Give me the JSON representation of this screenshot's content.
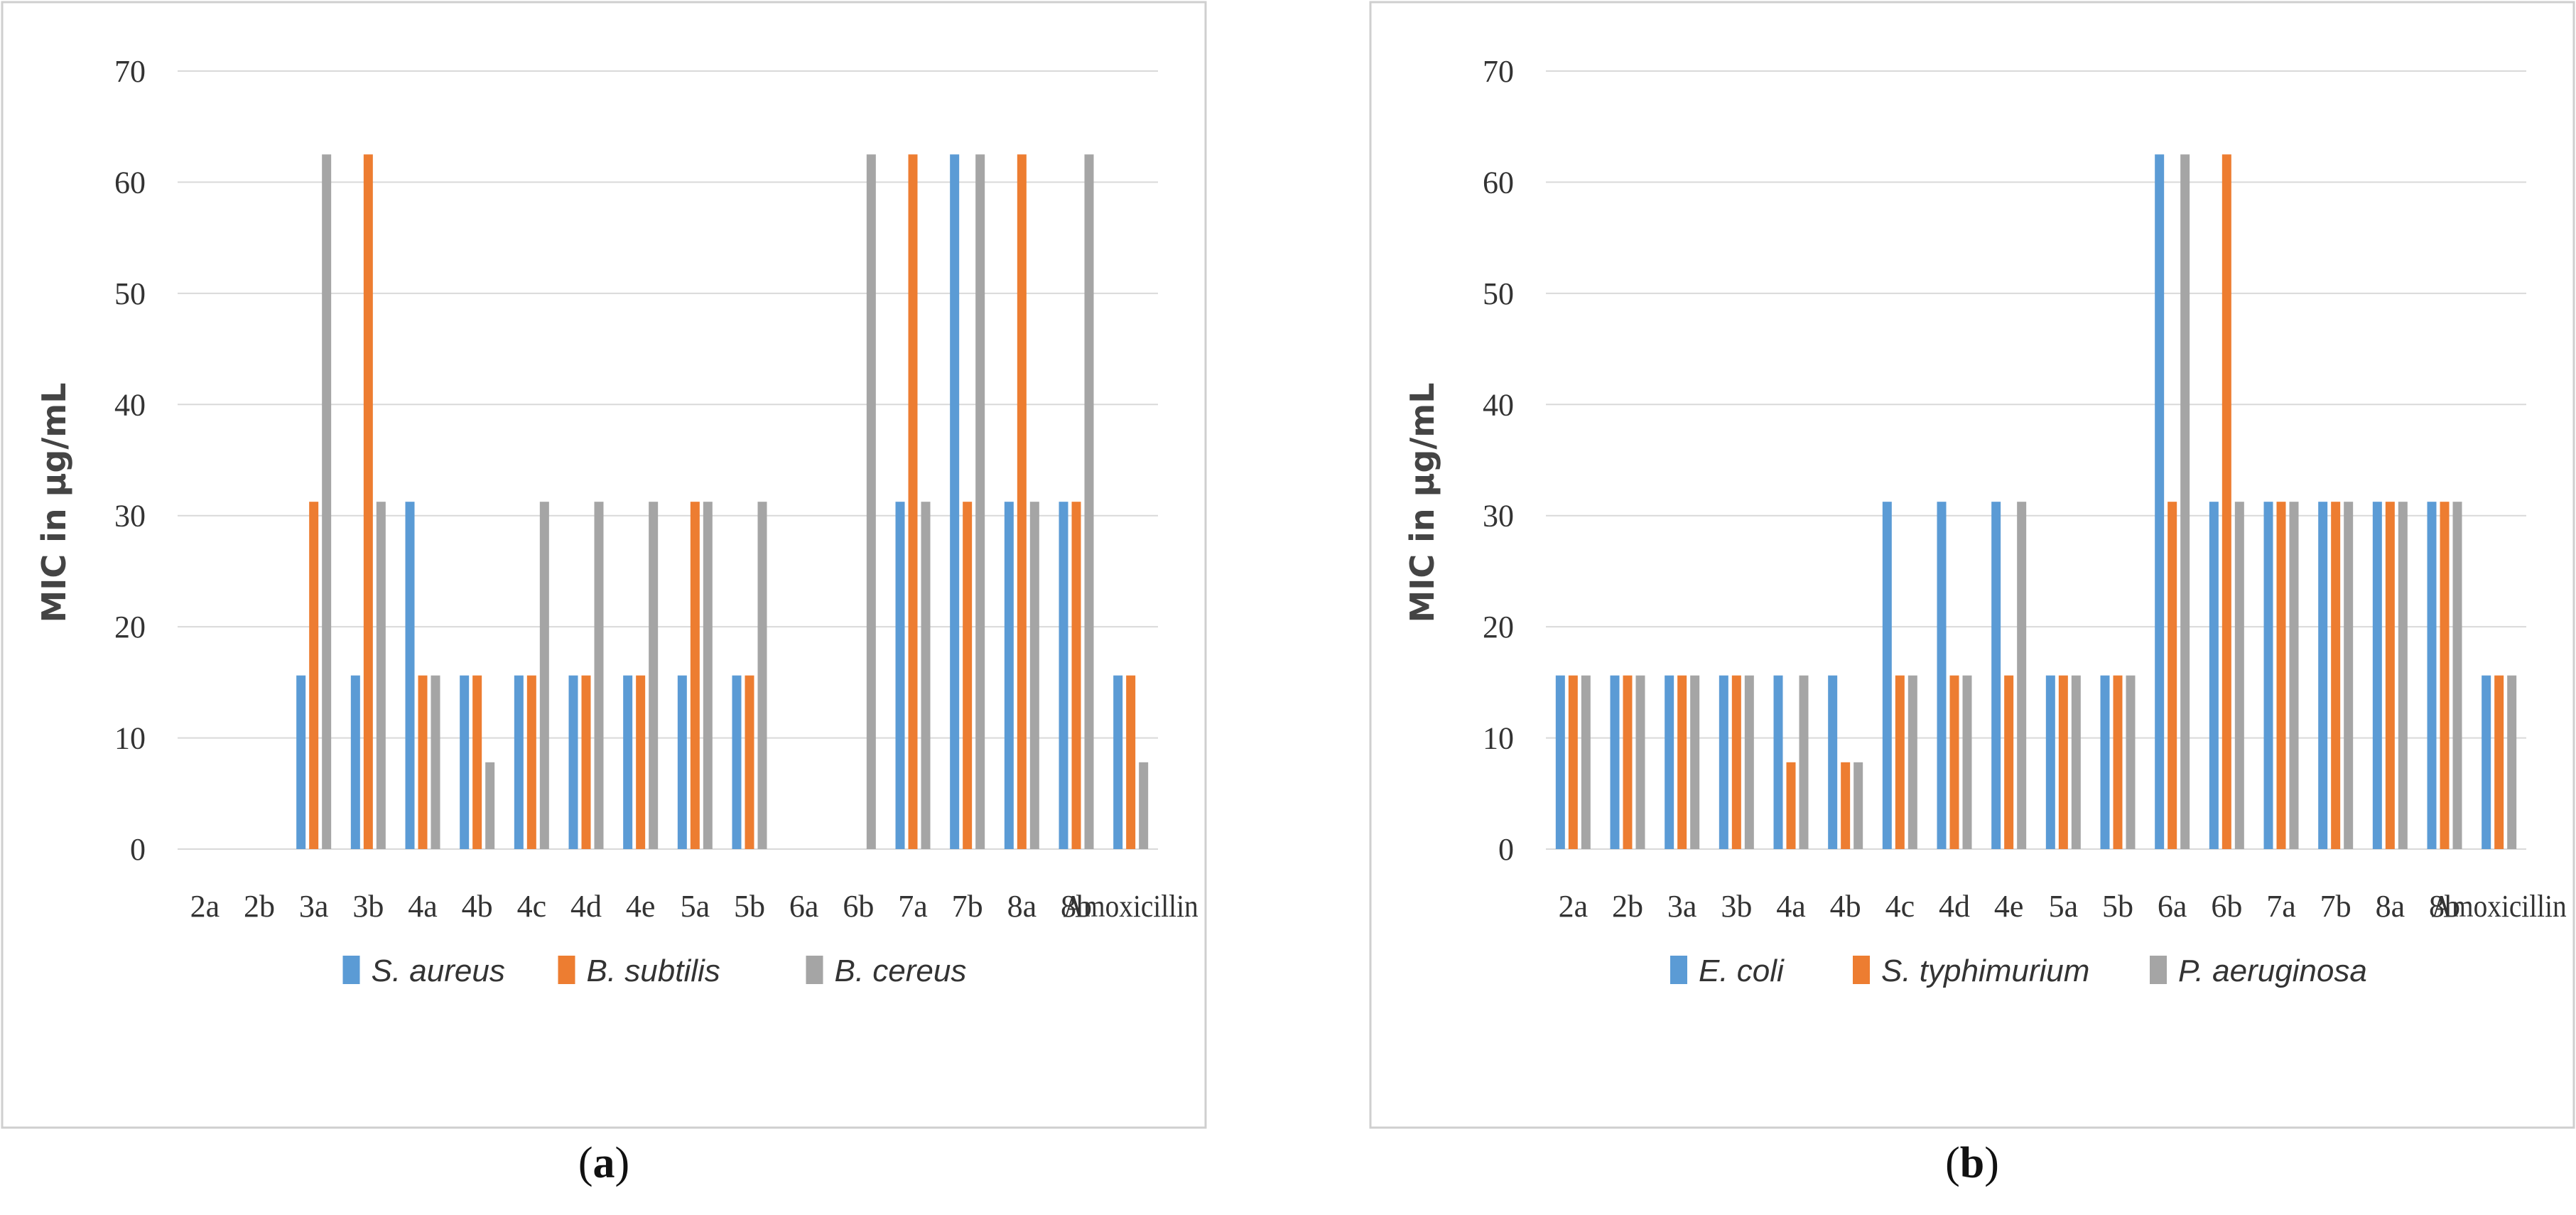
{
  "chart_data": [
    {
      "panel": "a",
      "type": "bar",
      "caption": "a",
      "ylabel": "MIC in µg/mL",
      "ylim": [
        0,
        70
      ],
      "yticks": [
        0,
        10,
        20,
        30,
        40,
        50,
        60,
        70
      ],
      "grid": true,
      "legend_placement": "bottom",
      "categories": [
        "2a",
        "2b",
        "3a",
        "3b",
        "4a",
        "4b",
        "4c",
        "4d",
        "4e",
        "5a",
        "5b",
        "6a",
        "6b",
        "7a",
        "7b",
        "8a",
        "8b",
        "Amoxicillin"
      ],
      "series": [
        {
          "name": "S. aureus",
          "color": "#5B9BD5",
          "values": [
            0,
            0,
            15.62,
            15.62,
            31.25,
            15.62,
            15.62,
            15.62,
            15.62,
            15.62,
            15.62,
            0,
            0,
            31.25,
            62.5,
            31.25,
            31.25,
            15.62
          ]
        },
        {
          "name": "B. subtilis",
          "color": "#ED7D31",
          "values": [
            0,
            0,
            31.25,
            62.5,
            15.62,
            15.62,
            15.62,
            15.62,
            15.62,
            31.25,
            15.62,
            0,
            0,
            62.5,
            31.25,
            62.5,
            31.25,
            15.62
          ]
        },
        {
          "name": "B. cereus",
          "color": "#A5A5A5",
          "values": [
            0,
            0,
            62.5,
            31.25,
            15.62,
            7.81,
            31.25,
            31.25,
            31.25,
            31.25,
            31.25,
            0,
            62.5,
            31.25,
            62.5,
            31.25,
            62.5,
            7.81
          ]
        }
      ]
    },
    {
      "panel": "b",
      "type": "bar",
      "caption": "b",
      "ylabel": "MIC in µg/mL",
      "ylim": [
        0,
        70
      ],
      "yticks": [
        0,
        10,
        20,
        30,
        40,
        50,
        60,
        70
      ],
      "grid": true,
      "legend_placement": "bottom",
      "categories": [
        "2a",
        "2b",
        "3a",
        "3b",
        "4a",
        "4b",
        "4c",
        "4d",
        "4e",
        "5a",
        "5b",
        "6a",
        "6b",
        "7a",
        "7b",
        "8a",
        "8b",
        "Amoxicillin"
      ],
      "series": [
        {
          "name": "E. coli",
          "color": "#5B9BD5",
          "values": [
            15.62,
            15.62,
            15.62,
            15.62,
            15.62,
            15.62,
            31.25,
            31.25,
            31.25,
            15.62,
            15.62,
            62.5,
            31.25,
            31.25,
            31.25,
            31.25,
            31.25,
            15.62
          ]
        },
        {
          "name": "S. typhimurium",
          "color": "#ED7D31",
          "values": [
            15.62,
            15.62,
            15.62,
            15.62,
            7.81,
            7.81,
            15.62,
            15.62,
            15.62,
            15.62,
            15.62,
            31.25,
            62.5,
            31.25,
            31.25,
            31.25,
            31.25,
            15.62
          ]
        },
        {
          "name": "P. aeruginosa",
          "color": "#A5A5A5",
          "values": [
            15.62,
            15.62,
            15.62,
            15.62,
            15.62,
            7.81,
            15.62,
            15.62,
            31.25,
            15.62,
            15.62,
            62.5,
            31.25,
            31.25,
            31.25,
            31.25,
            31.25,
            15.62
          ]
        }
      ]
    }
  ]
}
